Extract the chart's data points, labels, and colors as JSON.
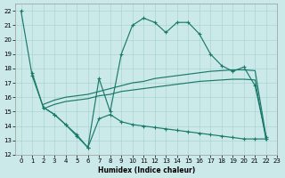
{
  "xlabel": "Humidex (Indice chaleur)",
  "xlim": [
    -0.5,
    23
  ],
  "ylim": [
    12,
    22.5
  ],
  "yticks": [
    12,
    13,
    14,
    15,
    16,
    17,
    18,
    19,
    20,
    21,
    22
  ],
  "xticks": [
    0,
    1,
    2,
    3,
    4,
    5,
    6,
    7,
    8,
    9,
    10,
    11,
    12,
    13,
    14,
    15,
    16,
    17,
    18,
    19,
    20,
    21,
    22,
    23
  ],
  "bg_color": "#cce9e9",
  "grid_color": "#aad4d4",
  "line_color": "#1a7a6a",
  "line1_x": [
    0,
    1,
    2,
    3,
    4,
    5,
    6,
    7,
    8,
    9,
    10,
    11,
    12,
    13,
    14,
    15,
    16,
    17,
    18,
    19,
    20,
    21,
    22
  ],
  "line1_y": [
    22.0,
    17.5,
    15.3,
    14.8,
    14.1,
    13.3,
    12.5,
    17.3,
    15.0,
    19.0,
    21.0,
    21.5,
    21.2,
    20.5,
    21.2,
    21.2,
    20.4,
    19.0,
    18.2,
    17.8,
    18.1,
    16.8,
    13.2
  ],
  "line2_x": [
    1,
    2,
    3,
    4,
    5,
    6,
    7,
    8,
    9,
    10,
    11,
    12,
    13,
    14,
    15,
    16,
    17,
    18,
    19,
    20,
    21,
    22
  ],
  "line2_y": [
    17.7,
    15.3,
    14.8,
    14.1,
    13.4,
    12.5,
    14.5,
    14.8,
    14.3,
    14.1,
    14.0,
    13.9,
    13.8,
    13.7,
    13.6,
    13.5,
    13.4,
    13.3,
    13.2,
    13.1,
    13.1,
    13.1
  ],
  "line3_x": [
    2,
    3,
    4,
    5,
    6,
    7,
    8,
    9,
    10,
    11,
    12,
    13,
    14,
    15,
    16,
    17,
    18,
    19,
    20,
    21,
    22
  ],
  "line3_y": [
    15.5,
    15.8,
    16.0,
    16.1,
    16.2,
    16.4,
    16.6,
    16.8,
    17.0,
    17.1,
    17.3,
    17.4,
    17.5,
    17.6,
    17.7,
    17.8,
    17.85,
    17.9,
    17.9,
    17.85,
    13.2
  ],
  "line4_x": [
    2,
    3,
    4,
    5,
    6,
    7,
    8,
    9,
    10,
    11,
    12,
    13,
    14,
    15,
    16,
    17,
    18,
    19,
    20,
    21,
    22
  ],
  "line4_y": [
    15.2,
    15.5,
    15.7,
    15.8,
    15.9,
    16.1,
    16.2,
    16.4,
    16.5,
    16.6,
    16.7,
    16.8,
    16.9,
    17.0,
    17.1,
    17.15,
    17.2,
    17.25,
    17.25,
    17.2,
    13.0
  ]
}
